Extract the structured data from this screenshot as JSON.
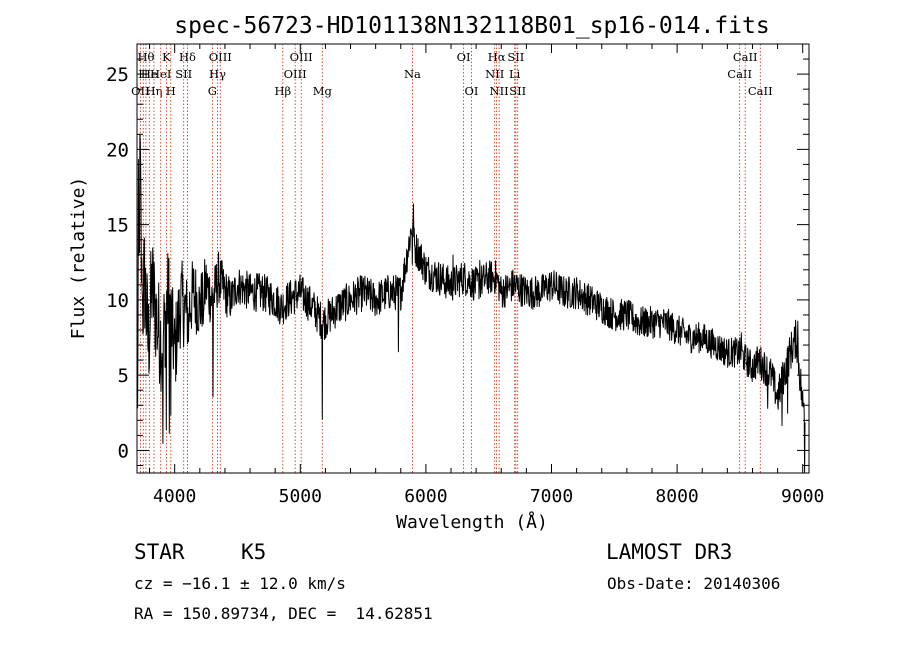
{
  "chart_data": {
    "type": "line",
    "title": "spec-56723-HD101138N132118B01_sp16-014.fits",
    "xlabel": "Wavelength (Å)",
    "ylabel": "Flux (relative)",
    "xlim": [
      3700,
      9050
    ],
    "ylim": [
      -1.5,
      27
    ],
    "xticks": [
      4000,
      5000,
      6000,
      7000,
      8000,
      9000
    ],
    "xtick_labels": [
      "4000",
      "5000",
      "6000",
      "7000",
      "8000",
      "9000"
    ],
    "yticks": [
      0,
      5,
      10,
      15,
      20,
      25
    ],
    "ytick_labels": [
      "0",
      "5",
      "10",
      "15",
      "20",
      "25"
    ],
    "grid": false,
    "line_color": "#000000",
    "marker_color": "#cc2200",
    "series": [
      {
        "name": "flux",
        "anchors_x": [
          3700,
          3712,
          3725,
          3740,
          3760,
          3790,
          3820,
          3860,
          3900,
          3950,
          4000,
          4050,
          4100,
          4150,
          4200,
          4250,
          4300,
          4350,
          4400,
          4450,
          4500,
          4600,
          4700,
          4800,
          4850,
          4900,
          5000,
          5100,
          5180,
          5300,
          5400,
          5500,
          5600,
          5700,
          5800,
          5850,
          5890,
          5910,
          5950,
          6000,
          6100,
          6200,
          6300,
          6400,
          6500,
          6560,
          6600,
          6700,
          6800,
          6900,
          7000,
          7100,
          7200,
          7300,
          7400,
          7500,
          7600,
          7700,
          7800,
          7900,
          8000,
          8100,
          8200,
          8300,
          8400,
          8500,
          8600,
          8650,
          8700,
          8750,
          8800,
          8850,
          8900,
          8950,
          9000
        ],
        "anchors_y": [
          0.5,
          10.0,
          19.5,
          9.0,
          11.5,
          7.0,
          11.0,
          8.5,
          7.0,
          10.5,
          6.5,
          10.0,
          9.0,
          10.5,
          9.5,
          11.0,
          10.0,
          11.5,
          10.5,
          10.0,
          11.0,
          10.5,
          10.5,
          10.0,
          9.5,
          10.0,
          10.5,
          9.5,
          8.5,
          9.5,
          10.0,
          10.5,
          10.0,
          10.5,
          10.5,
          13.0,
          15.0,
          13.5,
          13.0,
          12.0,
          11.5,
          11.0,
          11.5,
          11.0,
          11.5,
          11.5,
          10.5,
          11.0,
          10.5,
          10.5,
          11.0,
          10.5,
          10.5,
          10.0,
          9.5,
          9.0,
          9.0,
          8.5,
          8.5,
          8.5,
          8.0,
          7.5,
          7.5,
          7.0,
          6.5,
          6.5,
          5.5,
          6.0,
          5.5,
          5.0,
          3.5,
          5.0,
          6.5,
          7.5,
          3.0
        ],
        "noise_x": [
          3700,
          4000,
          4300,
          4500,
          6000,
          8500,
          9050
        ],
        "noise_amp": [
          4.2,
          3.0,
          1.9,
          1.3,
          1.2,
          1.0,
          1.4
        ]
      }
    ],
    "line_markers": [
      {
        "x": 3727,
        "row": 3,
        "label": "OII"
      },
      {
        "x": 3750,
        "row": 2,
        "label": "H"
      },
      {
        "x": 3771,
        "row": 1,
        "label": "Hθ"
      },
      {
        "x": 3798,
        "row": 2,
        "label": "He"
      },
      {
        "x": 3835,
        "row": 3,
        "label": "Hη"
      },
      {
        "x": 3889,
        "row": 2,
        "label": "HeI"
      },
      {
        "x": 3934,
        "row": 1,
        "label": "K"
      },
      {
        "x": 3969,
        "row": 3,
        "label": "H"
      },
      {
        "x": 4072,
        "row": 2,
        "label": "SII"
      },
      {
        "x": 4102,
        "row": 1,
        "label": "Hδ"
      },
      {
        "x": 4300,
        "row": 3,
        "label": "G"
      },
      {
        "x": 4341,
        "row": 2,
        "label": "Hγ"
      },
      {
        "x": 4363,
        "row": 1,
        "label": "OIII"
      },
      {
        "x": 4861,
        "row": 3,
        "label": "Hβ"
      },
      {
        "x": 4959,
        "row": 2,
        "label": "OIII"
      },
      {
        "x": 5007,
        "row": 1,
        "label": "OIII"
      },
      {
        "x": 5175,
        "row": 3,
        "label": "Mg"
      },
      {
        "x": 5893,
        "row": 2,
        "label": "Na"
      },
      {
        "x": 6300,
        "row": 1,
        "label": "OI"
      },
      {
        "x": 6363,
        "row": 3,
        "label": "OI"
      },
      {
        "x": 6548,
        "row": 2,
        "label": "NII"
      },
      {
        "x": 6563,
        "row": 1,
        "label": "Hα"
      },
      {
        "x": 6583,
        "row": 3,
        "label": "NII"
      },
      {
        "x": 6707,
        "row": 2,
        "label": "Li"
      },
      {
        "x": 6716,
        "row": 1,
        "label": "SII"
      },
      {
        "x": 6731,
        "row": 3,
        "label": "SII"
      },
      {
        "x": 8498,
        "row": 2,
        "label": "CaII"
      },
      {
        "x": 8542,
        "row": 1,
        "label": "CaII"
      },
      {
        "x": 8662,
        "row": 3,
        "label": "CaII"
      }
    ]
  },
  "info": {
    "object_class": "STAR",
    "subclass": "K5",
    "redshift": "cz = −16.1 ± 12.0 km/s",
    "coords": "RA = 150.89734, DEC =  14.62851",
    "survey": "LAMOST DR3",
    "obs_date": "Obs-Date: 20140306"
  }
}
